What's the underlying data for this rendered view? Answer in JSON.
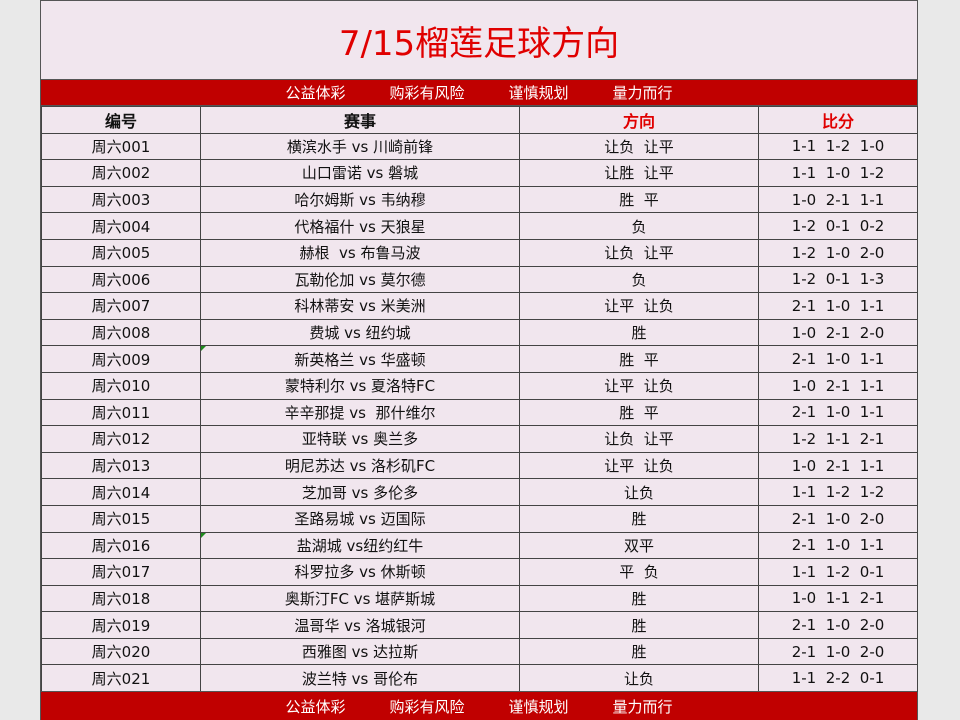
{
  "title": "7/15榴莲足球方向",
  "banner": [
    "公益体彩",
    "购彩有风险",
    "谨慎规划",
    "量力而行"
  ],
  "headers": [
    "编号",
    "赛事",
    "方向",
    "比分"
  ],
  "rows": [
    {
      "id": "周六001",
      "match": "横滨水手 vs 川崎前锋",
      "direction": "让负  让平",
      "score": "1-1  1-2  1-0"
    },
    {
      "id": "周六002",
      "match": "山口雷诺 vs 磐城",
      "direction": "让胜  让平",
      "score": "1-1  1-0  1-2"
    },
    {
      "id": "周六003",
      "match": "哈尔姆斯 vs 韦纳穆",
      "direction": "胜  平",
      "score": "1-0  2-1  1-1"
    },
    {
      "id": "周六004",
      "match": "代格福什 vs 天狼星",
      "direction": "负",
      "score": "1-2  0-1  0-2"
    },
    {
      "id": "周六005",
      "match": "赫根  vs 布鲁马波",
      "direction": "让负  让平",
      "score": "1-2  1-0  2-0"
    },
    {
      "id": "周六006",
      "match": "瓦勒伦加 vs 莫尔德",
      "direction": "负",
      "score": "1-2  0-1  1-3"
    },
    {
      "id": "周六007",
      "match": "科林蒂安 vs 米美洲",
      "direction": "让平  让负",
      "score": "2-1  1-0  1-1"
    },
    {
      "id": "周六008",
      "match": "费城 vs 纽约城",
      "direction": "胜",
      "score": "1-0  2-1  2-0"
    },
    {
      "id": "周六009",
      "match": "新英格兰 vs 华盛顿",
      "direction": "胜  平",
      "score": "2-1  1-0  1-1"
    },
    {
      "id": "周六010",
      "match": "蒙特利尔 vs 夏洛特FC",
      "direction": "让平  让负",
      "score": "1-0  2-1  1-1"
    },
    {
      "id": "周六011",
      "match": "辛辛那提 vs  那什维尔",
      "direction": "胜  平",
      "score": "2-1  1-0  1-1"
    },
    {
      "id": "周六012",
      "match": "亚特联 vs 奥兰多",
      "direction": "让负  让平",
      "score": "1-2  1-1  2-1"
    },
    {
      "id": "周六013",
      "match": "明尼苏达 vs 洛杉矶FC",
      "direction": "让平  让负",
      "score": "1-0  2-1  1-1"
    },
    {
      "id": "周六014",
      "match": "芝加哥 vs 多伦多",
      "direction": "让负",
      "score": "1-1  1-2  1-2"
    },
    {
      "id": "周六015",
      "match": "圣路易城 vs 迈国际",
      "direction": "胜",
      "score": "2-1  1-0  2-0"
    },
    {
      "id": "周六016",
      "match": "盐湖城 vs纽约红牛",
      "direction": "双平",
      "score": "2-1  1-0  1-1"
    },
    {
      "id": "周六017",
      "match": "科罗拉多 vs 休斯顿",
      "direction": "平  负",
      "score": "1-1  1-2  0-1"
    },
    {
      "id": "周六018",
      "match": "奥斯汀FC vs 堪萨斯城",
      "direction": "胜",
      "score": "1-0  1-1  2-1"
    },
    {
      "id": "周六019",
      "match": "温哥华 vs 洛城银河",
      "direction": "胜",
      "score": "2-1  1-0  2-0"
    },
    {
      "id": "周六020",
      "match": "西雅图 vs 达拉斯",
      "direction": "胜",
      "score": "2-1  1-0  2-0"
    },
    {
      "id": "周六021",
      "match": "波兰特 vs 哥伦布",
      "direction": "让负",
      "score": "1-1  2-2  0-1"
    }
  ]
}
